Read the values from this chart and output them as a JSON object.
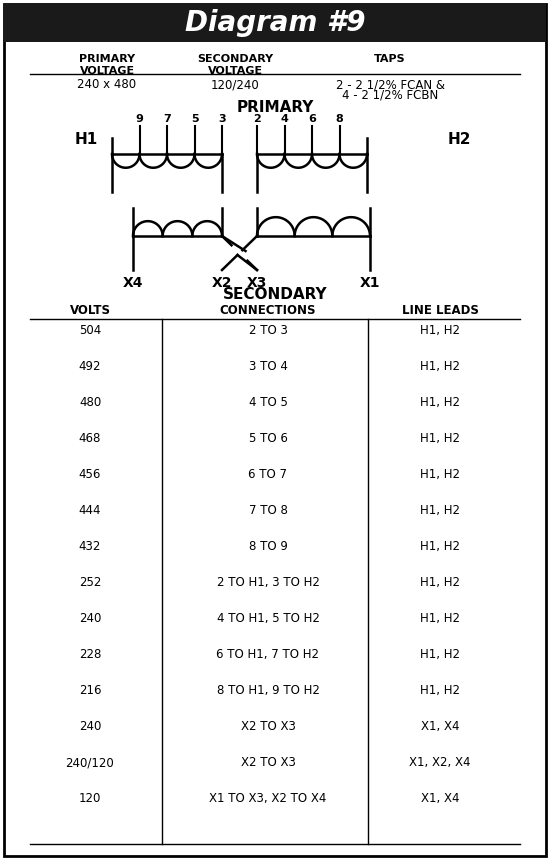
{
  "title": "Diagram #9",
  "title_bg": "#1a1a1a",
  "title_color": "#ffffff",
  "primary_voltage": "240 x 480",
  "secondary_voltage": "120/240",
  "taps_line1": "2 - 2 1/2% FCAN &",
  "taps_line2": "4 - 2 1/2% FCBN",
  "table_headers": [
    "VOLTS",
    "CONNECTIONS",
    "LINE LEADS"
  ],
  "table_rows": [
    [
      "504",
      "2 TO 3",
      "H1, H2"
    ],
    [
      "492",
      "3 TO 4",
      "H1, H2"
    ],
    [
      "480",
      "4 TO 5",
      "H1, H2"
    ],
    [
      "468",
      "5 TO 6",
      "H1, H2"
    ],
    [
      "456",
      "6 TO 7",
      "H1, H2"
    ],
    [
      "444",
      "7 TO 8",
      "H1, H2"
    ],
    [
      "432",
      "8 TO 9",
      "H1, H2"
    ],
    [
      "252",
      "2 TO H1, 3 TO H2",
      "H1, H2"
    ],
    [
      "240",
      "4 TO H1, 5 TO H2",
      "H1, H2"
    ],
    [
      "228",
      "6 TO H1, 7 TO H2",
      "H1, H2"
    ],
    [
      "216",
      "8 TO H1, 9 TO H2",
      "H1, H2"
    ],
    [
      "240",
      "X2 TO X3",
      "X1, X4"
    ],
    [
      "240/120",
      "X2 TO X3",
      "X1, X2, X4"
    ],
    [
      "120",
      "X1 TO X3, X2 TO X4",
      "X1, X4"
    ]
  ],
  "bg_color": "#ffffff",
  "font_color": "#000000"
}
